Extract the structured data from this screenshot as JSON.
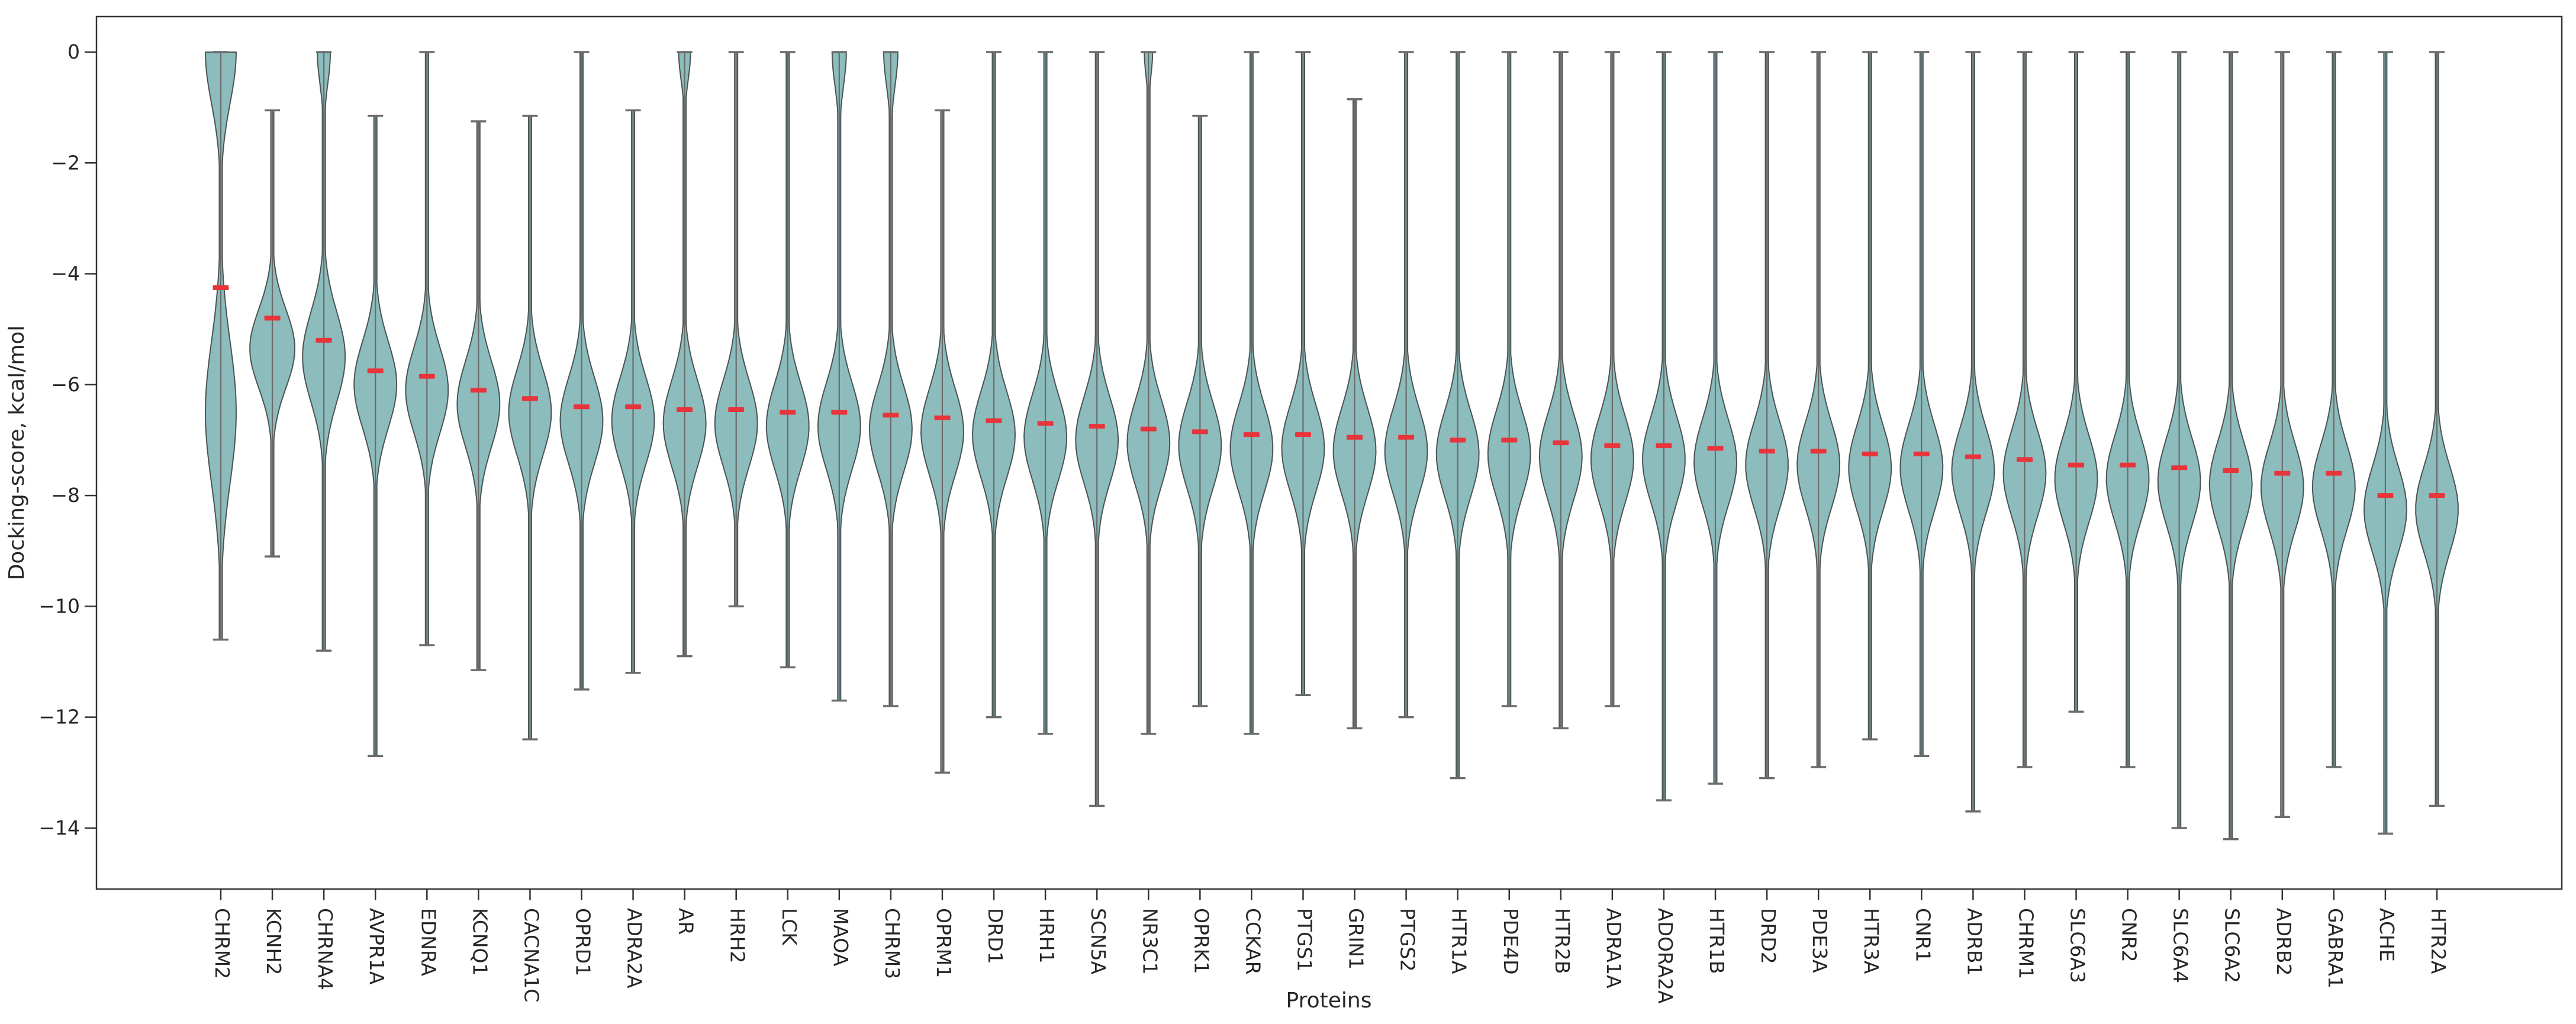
{
  "chart_data": {
    "type": "violin",
    "title": "",
    "xlabel": "Proteins",
    "ylabel": "Docking-score, kcal/mol",
    "ylim": [
      -15.1,
      0.65
    ],
    "grid": false,
    "legend": "none",
    "y_tick_values": [
      0,
      -2,
      -4,
      -6,
      -8,
      -10,
      -12,
      -14
    ],
    "y_tick_labels": [
      "0",
      "−2",
      "−4",
      "−6",
      "−8",
      "−10",
      "−12",
      "−14"
    ],
    "categories": [
      "CHRM2",
      "KCNH2",
      "CHRNA4",
      "AVPR1A",
      "EDNRA",
      "KCNQ1",
      "CACNA1C",
      "OPRD1",
      "ADRA2A",
      "AR",
      "HRH2",
      "LCK",
      "MAOA",
      "CHRM3",
      "OPRM1",
      "DRD1",
      "HRH1",
      "SCN5A",
      "NR3C1",
      "OPRK1",
      "CCKAR",
      "PTGS1",
      "GRIN1",
      "PTGS2",
      "HTR1A",
      "PDE4D",
      "HTR2B",
      "ADRA1A",
      "ADORA2A",
      "HTR1B",
      "DRD2",
      "PDE3A",
      "HTR3A",
      "CNR1",
      "ADRB1",
      "CHRM1",
      "SLC6A3",
      "CNR2",
      "SLC6A4",
      "SLC6A2",
      "ADRB2",
      "GABRA1",
      "ACHE",
      "HTR2A"
    ],
    "series": [
      {
        "name": "median",
        "values": [
          -4.25,
          -4.8,
          -5.2,
          -5.75,
          -5.85,
          -6.1,
          -6.25,
          -6.4,
          -6.4,
          -6.45,
          -6.45,
          -6.5,
          -6.5,
          -6.55,
          -6.6,
          -6.65,
          -6.7,
          -6.75,
          -6.8,
          -6.85,
          -6.9,
          -6.9,
          -6.95,
          -6.95,
          -7.0,
          -7.0,
          -7.05,
          -7.1,
          -7.1,
          -7.15,
          -7.2,
          -7.2,
          -7.25,
          -7.25,
          -7.3,
          -7.35,
          -7.45,
          -7.45,
          -7.5,
          -7.55,
          -7.6,
          -7.6,
          -8.0,
          -8.0
        ]
      },
      {
        "name": "whisker_top",
        "values": [
          0,
          -1.05,
          0,
          -1.15,
          0,
          -1.25,
          -1.15,
          0,
          -1.05,
          0,
          0,
          0,
          0,
          0,
          -1.05,
          0,
          0,
          0,
          0,
          -1.15,
          0,
          0,
          -0.85,
          0,
          0,
          0,
          0,
          0,
          0,
          0,
          0,
          0,
          0,
          0,
          0,
          0,
          0,
          0,
          0,
          0,
          0,
          0,
          0,
          0
        ]
      },
      {
        "name": "whisker_bottom",
        "values": [
          -10.6,
          -9.1,
          -10.8,
          -12.7,
          -10.7,
          -11.15,
          -12.4,
          -11.5,
          -11.2,
          -10.9,
          -10.0,
          -11.1,
          -11.7,
          -11.8,
          -13.0,
          -12.0,
          -12.3,
          -13.6,
          -12.3,
          -11.8,
          -12.3,
          -11.6,
          -12.2,
          -12.0,
          -13.1,
          -11.8,
          -12.2,
          -11.8,
          -13.5,
          -13.2,
          -13.1,
          -12.9,
          -12.4,
          -12.7,
          -13.7,
          -12.9,
          -11.9,
          -12.9,
          -14.0,
          -14.2,
          -13.8,
          -12.9,
          -14.1,
          -13.6
        ]
      }
    ],
    "median_marker": "red horizontal dash",
    "whisker_caps": true
  },
  "violin_shape_hints": {
    "default": {
      "max_halfwidth": 36,
      "bulge_sigma": 1.1,
      "bulge_center_offset": -0.25,
      "top_halfwidth": 0,
      "top_sigma": 0.8,
      "stem_halfwidth": 2.5
    },
    "CHRM2": {
      "max_halfwidth": 26,
      "bulge_center": -6.5,
      "bulge_sigma": 1.8,
      "top_halfwidth": 26,
      "top_sigma": 1.3
    },
    "KCNH2": {
      "max_halfwidth": 38,
      "bulge_center": -5.35,
      "bulge_sigma": 1.0
    },
    "CHRNA4": {
      "bulge_center": -5.5,
      "bulge_sigma": 1.15,
      "top_halfwidth": 11,
      "top_sigma": 0.8
    },
    "AR": {
      "top_halfwidth": 10,
      "top_sigma": 0.7
    },
    "MAOA": {
      "top_halfwidth": 12,
      "top_sigma": 0.85
    },
    "CHRM3": {
      "top_halfwidth": 12,
      "top_sigma": 0.85
    },
    "NR3C1": {
      "top_halfwidth": 7,
      "top_sigma": 0.6
    }
  },
  "colors": {
    "violin_fill": "#8dbcbd",
    "violin_edge": "#4b5454",
    "whisker": "#6b6b6b",
    "median": "#e8343b",
    "text": "#262626",
    "spine": "#333333",
    "background": "#ffffff"
  }
}
